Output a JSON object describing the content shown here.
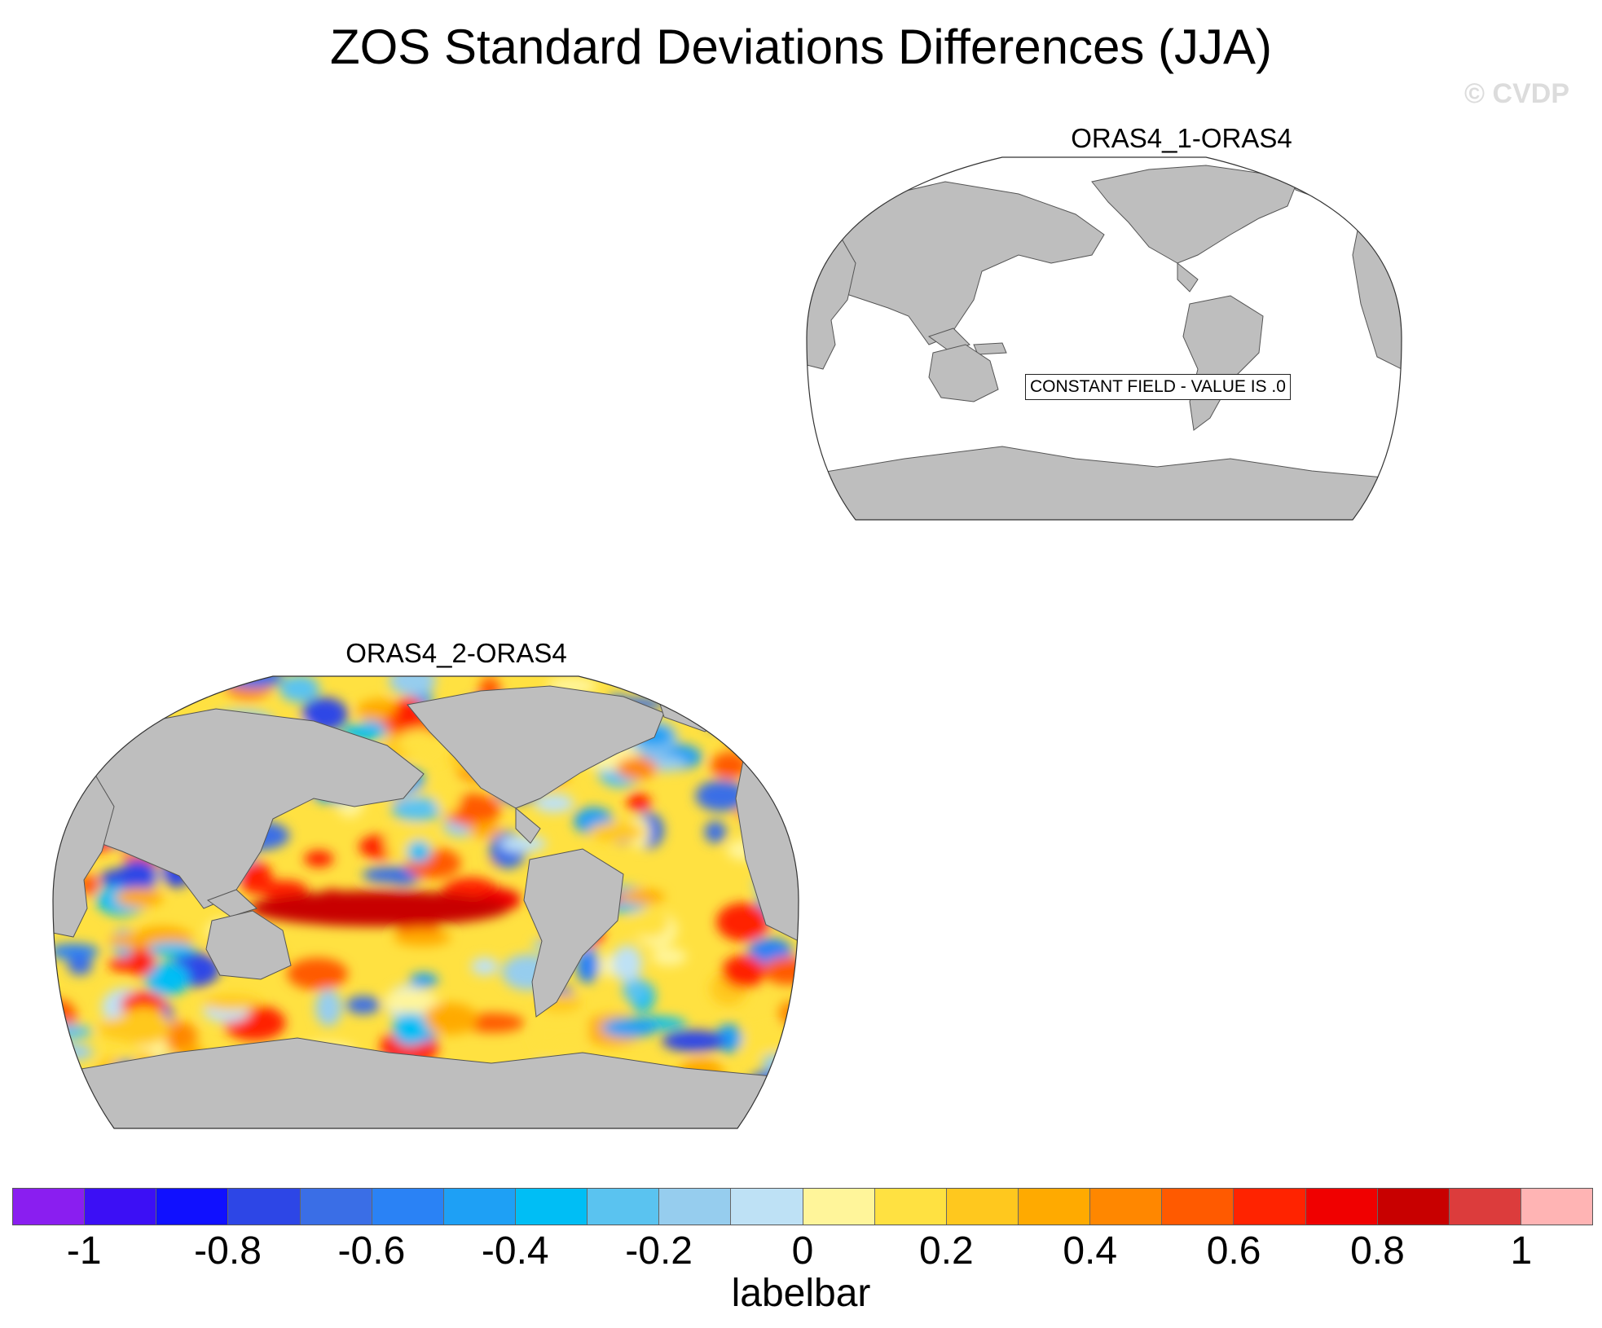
{
  "title": "ZOS Standard Deviations Differences (JJA)",
  "watermark": "© CVDP",
  "panels": [
    {
      "title": "ORAS4_1-ORAS4",
      "note": "CONSTANT FIELD - VALUE IS .0"
    },
    {
      "title": "ORAS4_2-ORAS4"
    }
  ],
  "labelbar": {
    "label": "labelbar",
    "ticks": [
      "-1",
      "-0.8",
      "-0.6",
      "-0.4",
      "-0.2",
      "0",
      "0.2",
      "0.4",
      "0.6",
      "0.8",
      "1"
    ],
    "colors": [
      "#8a1ef0",
      "#3c0ff5",
      "#1010ff",
      "#2d46e6",
      "#3a6ee6",
      "#2a82f5",
      "#1ea0f5",
      "#00bef5",
      "#5ac3f0",
      "#96cdee",
      "#bee1f5",
      "#fff59a",
      "#ffe141",
      "#ffc81e",
      "#ffaa00",
      "#ff8700",
      "#ff5a00",
      "#ff2300",
      "#f00000",
      "#c80000",
      "#dc3c3c",
      "#ffb4b4"
    ]
  },
  "colors": {
    "land": "#bebebe",
    "coast": "#555555",
    "ocean_blank": "#ffffff"
  }
}
